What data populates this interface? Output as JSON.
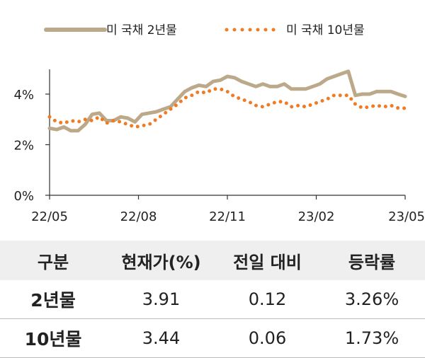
{
  "chart_data": {
    "type": "line",
    "x_ticks": [
      "22/05",
      "22/08",
      "22/11",
      "23/02",
      "23/05"
    ],
    "y_ticks": [
      "0%",
      "2%",
      "4%"
    ],
    "ylim": [
      0,
      5
    ],
    "unit": "%",
    "legend": "top",
    "grid": false,
    "series": [
      {
        "name": "미 국채 2년물",
        "style": "solid",
        "color": "#bca98a",
        "values": [
          2.65,
          2.6,
          2.7,
          2.55,
          2.55,
          2.8,
          3.2,
          3.25,
          2.95,
          2.95,
          3.1,
          3.05,
          2.9,
          3.2,
          3.25,
          3.3,
          3.4,
          3.5,
          3.8,
          4.1,
          4.25,
          4.35,
          4.3,
          4.5,
          4.55,
          4.7,
          4.65,
          4.5,
          4.4,
          4.3,
          4.4,
          4.3,
          4.3,
          4.4,
          4.2,
          4.2,
          4.2,
          4.3,
          4.4,
          4.6,
          4.7,
          4.8,
          4.9,
          3.95,
          4.0,
          4.0,
          4.1,
          4.1,
          4.1,
          4.0,
          3.91
        ]
      },
      {
        "name": "미 국채 10년물",
        "style": "dotted",
        "color": "#f07b22",
        "values": [
          3.1,
          2.9,
          2.85,
          2.95,
          2.9,
          3.0,
          2.95,
          3.1,
          2.85,
          2.95,
          2.9,
          2.8,
          2.7,
          2.75,
          2.8,
          3.0,
          3.2,
          3.4,
          3.6,
          3.85,
          3.95,
          4.1,
          4.05,
          4.2,
          4.2,
          4.1,
          3.9,
          3.8,
          3.7,
          3.55,
          3.5,
          3.6,
          3.7,
          3.7,
          3.5,
          3.55,
          3.5,
          3.6,
          3.7,
          3.8,
          3.95,
          3.95,
          3.95,
          3.6,
          3.45,
          3.5,
          3.55,
          3.5,
          3.55,
          3.45,
          3.44
        ]
      }
    ]
  },
  "table": {
    "headers": [
      "구분",
      "현재가(%)",
      "전일 대비",
      "등락률"
    ],
    "rows": [
      [
        "2년물",
        "3.91",
        "0.12",
        "3.26%"
      ],
      [
        "10년물",
        "3.44",
        "0.06",
        "1.73%"
      ]
    ]
  }
}
